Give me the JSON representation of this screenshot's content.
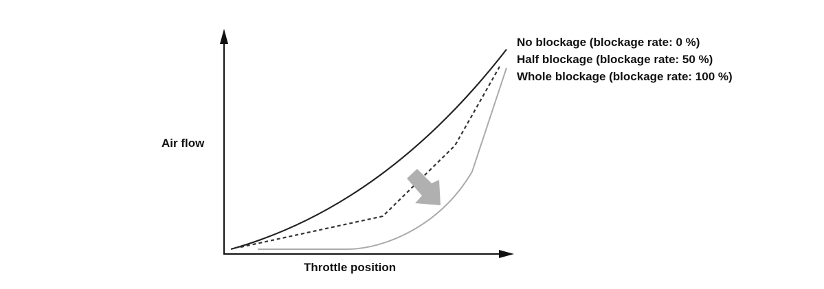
{
  "diagram": {
    "y_axis_label": "Air flow",
    "x_axis_label": "Throttle position",
    "legend": [
      "No blockage (blockage rate: 0 %)",
      "Half blockage (blockage rate: 50 %)",
      "Whole blockage (blockage rate: 100 %)"
    ],
    "colors": {
      "no_blockage": "#222222",
      "half_blockage": "#333333",
      "whole_blockage": "#aaaaaa",
      "trend_arrow": "#b0b0b0",
      "axes": "#111111"
    }
  }
}
